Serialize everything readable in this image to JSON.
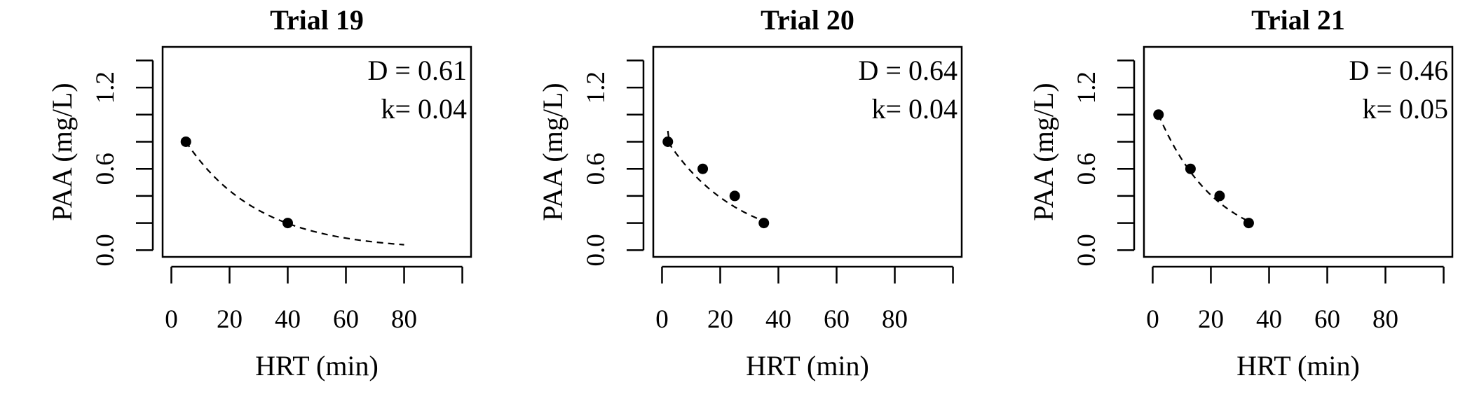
{
  "chart_data": [
    {
      "type": "scatter",
      "title": "Trial 19",
      "xlabel": "HRT (min)",
      "ylabel": "PAA (mg/L)",
      "xlim": [
        -3,
        103
      ],
      "ylim": [
        -0.05,
        1.5
      ],
      "x_ticks": [
        0,
        20,
        40,
        60,
        80,
        100
      ],
      "x_tick_labels": [
        "0",
        "20",
        "40",
        "60",
        "80"
      ],
      "y_ticks": [
        0.0,
        0.2,
        0.4,
        0.6,
        0.8,
        1.0,
        1.2,
        1.4
      ],
      "y_tick_labels": [
        "0.0",
        "0.6",
        "1.2"
      ],
      "y_tick_label_values": [
        0.0,
        0.6,
        1.2
      ],
      "points": {
        "x": [
          5,
          40
        ],
        "y": [
          0.8,
          0.2
        ]
      },
      "fit": {
        "style": "dashed",
        "x_start": 5,
        "x_end": 80,
        "D": 0.61,
        "k": 0.04
      },
      "annotations": [
        "D = 0.61",
        "k= 0.04"
      ]
    },
    {
      "type": "scatter",
      "title": "Trial 20",
      "xlabel": "HRT (min)",
      "ylabel": "PAA (mg/L)",
      "xlim": [
        -3,
        103
      ],
      "ylim": [
        -0.05,
        1.5
      ],
      "x_ticks": [
        0,
        20,
        40,
        60,
        80,
        100
      ],
      "x_tick_labels": [
        "0",
        "20",
        "40",
        "60",
        "80"
      ],
      "y_ticks": [
        0.0,
        0.2,
        0.4,
        0.6,
        0.8,
        1.0,
        1.2,
        1.4
      ],
      "y_tick_labels": [
        "0.0",
        "0.6",
        "1.2"
      ],
      "y_tick_label_values": [
        0.0,
        0.6,
        1.2
      ],
      "points": {
        "x": [
          2,
          14,
          25,
          35
        ],
        "y": [
          0.8,
          0.6,
          0.4,
          0.2
        ]
      },
      "fit": {
        "style": "dashed",
        "x_start": 2,
        "x_end": 34,
        "D": 0.64,
        "k": 0.04
      },
      "annotations": [
        "D = 0.64",
        "k= 0.04"
      ]
    },
    {
      "type": "scatter",
      "title": "Trial 21",
      "xlabel": "HRT (min)",
      "ylabel": "PAA (mg/L)",
      "xlim": [
        -3,
        103
      ],
      "ylim": [
        -0.05,
        1.5
      ],
      "x_ticks": [
        0,
        20,
        40,
        60,
        80,
        100
      ],
      "x_tick_labels": [
        "0",
        "20",
        "40",
        "60",
        "80"
      ],
      "y_ticks": [
        0.0,
        0.2,
        0.4,
        0.6,
        0.8,
        1.0,
        1.2,
        1.4
      ],
      "y_tick_labels": [
        "0.0",
        "0.6",
        "1.2"
      ],
      "y_tick_label_values": [
        0.0,
        0.6,
        1.2
      ],
      "points": {
        "x": [
          2,
          13,
          23,
          33
        ],
        "y": [
          1.0,
          0.6,
          0.4,
          0.2
        ]
      },
      "fit": {
        "style": "dashed",
        "x_start": 2,
        "x_end": 33,
        "D": 0.46,
        "k": 0.05
      },
      "annotations": [
        "D = 0.46",
        "k= 0.05"
      ]
    }
  ]
}
